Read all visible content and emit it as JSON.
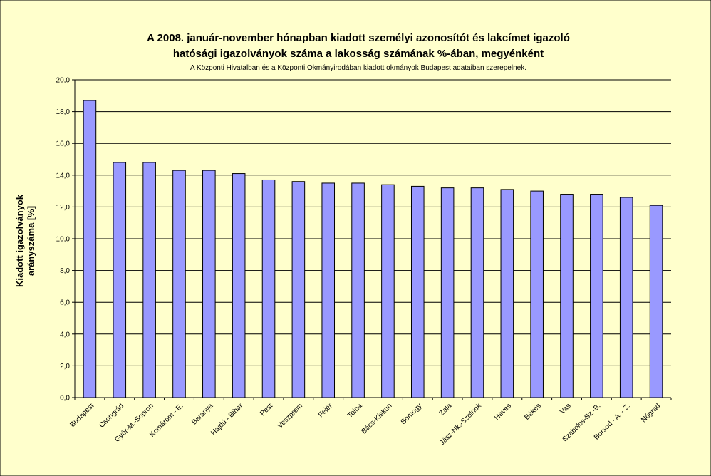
{
  "chart_data": {
    "type": "bar",
    "title": "A 2008. január-november hónapban kiadott személyi azonosítót és lakcímet igazoló",
    "title_line2": "hatósági igazolványok száma a lakosság  számának %-ában, megyénként",
    "subtitle": "A Központi Hivatalban és a Központi Okmányirodában kiadott okmányok Budapest adataiban szerepelnek.",
    "ylabel_line1": "Kiadott igazolványok",
    "ylabel_line2": "arányszáma [%]",
    "xlabel": "",
    "ylim": [
      0,
      20
    ],
    "yticks": [
      "0,0",
      "2,0",
      "4,0",
      "6,0",
      "8,0",
      "10,0",
      "12,0",
      "14,0",
      "16,0",
      "18,0",
      "20,0"
    ],
    "grid": true,
    "legend": "none",
    "categories": [
      "Budapest",
      "Csongrád",
      "Győr-M.-Sopron",
      "Komárom - E.",
      "Baranya",
      "Hajdú - Bihar",
      "Pest",
      "Veszprém",
      "Fejér",
      "Tolna",
      "Bács-Kiskun",
      "Somogy",
      "Zala",
      "Jász-Nk.-Szolnok",
      "Heves",
      "Békés",
      "Vas",
      "Szabolcs-Sz.-B.",
      "Borsod - A. - Z.",
      "Nógrád"
    ],
    "values": [
      18.7,
      14.8,
      14.8,
      14.3,
      14.3,
      14.1,
      13.7,
      13.6,
      13.5,
      13.5,
      13.4,
      13.3,
      13.2,
      13.2,
      13.1,
      13.0,
      12.8,
      12.8,
      12.6,
      12.1
    ],
    "colors": {
      "background": "#ffffcc",
      "bar_fill": "#9999ff",
      "bar_stroke": "#000000",
      "grid": "#000000"
    }
  }
}
